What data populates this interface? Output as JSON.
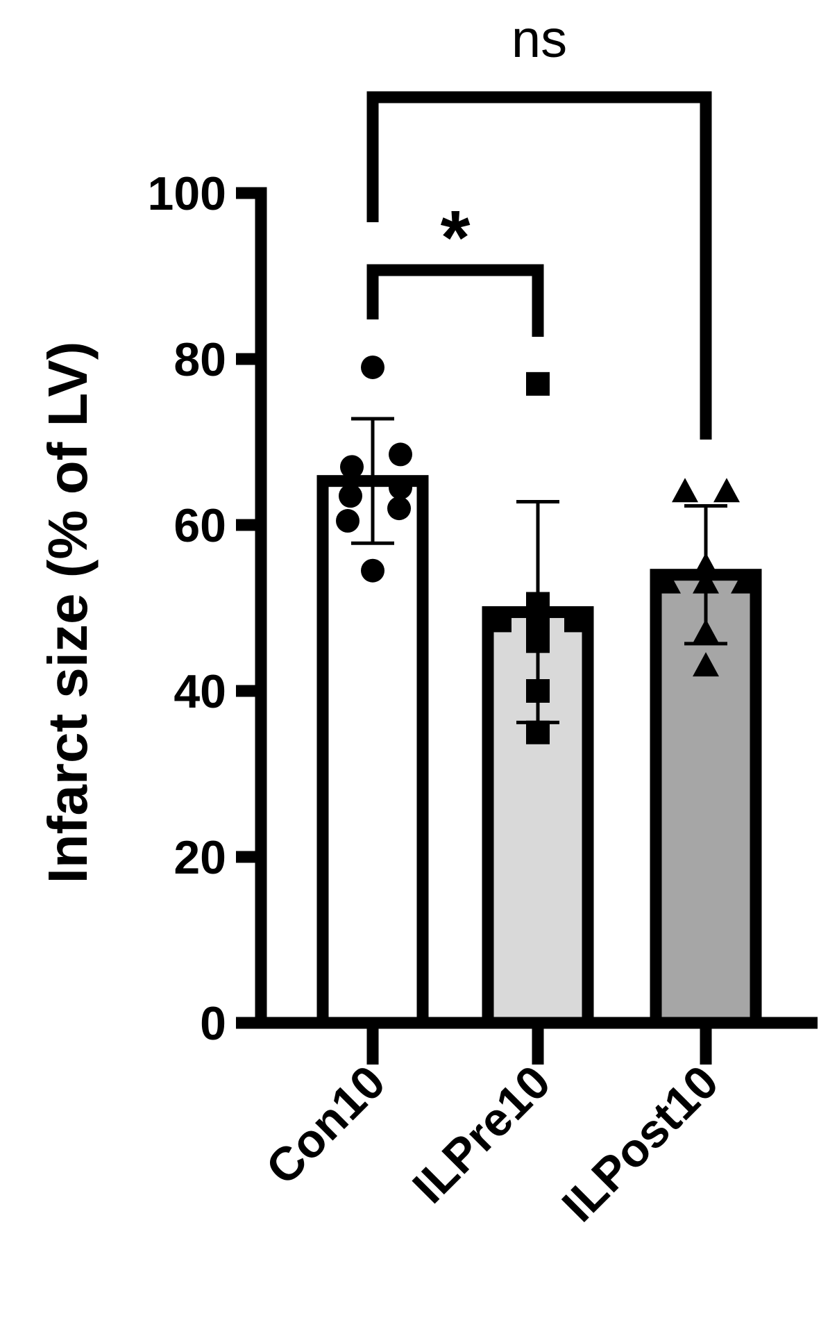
{
  "chart_data": {
    "type": "bar",
    "title": "",
    "xlabel": "",
    "ylabel": "Infarct size (% of LV)",
    "ylim": [
      0,
      100
    ],
    "yticks": [
      0,
      20,
      40,
      60,
      80,
      100
    ],
    "grid": false,
    "legend": "none",
    "categories": [
      "Con10",
      "ILPre10",
      "ILPost10"
    ],
    "bars": [
      {
        "category": "Con10",
        "mean": 65.3,
        "sd": 7.5,
        "fill": "#ffffff",
        "marker": "circle",
        "points": [
          79,
          68.5,
          67,
          64.5,
          63.5,
          62,
          60.5,
          54.5
        ]
      },
      {
        "category": "ILPre10",
        "mean": 49.5,
        "sd": 13.3,
        "fill": "#d9d9d9",
        "marker": "square",
        "points": [
          77,
          50.5,
          48.5,
          48.5,
          48.5,
          46,
          40,
          35
        ]
      },
      {
        "category": "ILPost10",
        "mean": 54,
        "sd": 8.3,
        "fill": "#a6a6a6",
        "marker": "triangle",
        "points": [
          64,
          64,
          55,
          53,
          53,
          53,
          47,
          43
        ]
      }
    ],
    "comparisons": [
      {
        "from": "Con10",
        "to": "ILPre10",
        "label": "*"
      },
      {
        "from": "Con10",
        "to": "ILPost10",
        "label": "ns"
      }
    ]
  }
}
